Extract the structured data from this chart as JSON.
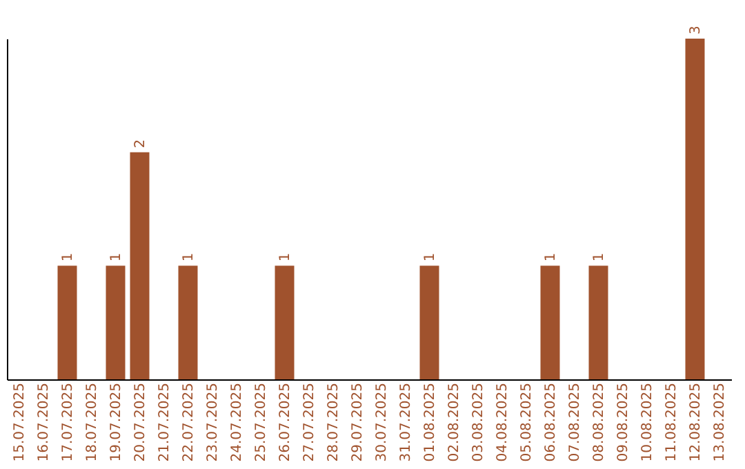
{
  "chart_data": {
    "type": "bar",
    "categories": [
      "15.07.2025",
      "16.07.2025",
      "17.07.2025",
      "18.07.2025",
      "19.07.2025",
      "20.07.2025",
      "21.07.2025",
      "22.07.2025",
      "23.07.2025",
      "24.07.2025",
      "25.07.2025",
      "26.07.2025",
      "27.07.2025",
      "28.07.2025",
      "29.07.2025",
      "30.07.2025",
      "31.07.2025",
      "01.08.2025",
      "02.08.2025",
      "03.08.2025",
      "04.08.2025",
      "05.08.2025",
      "06.08.2025",
      "07.08.2025",
      "08.08.2025",
      "09.08.2025",
      "10.08.2025",
      "11.08.2025",
      "12.08.2025",
      "13.08.2025"
    ],
    "values": [
      null,
      null,
      1,
      null,
      1,
      2,
      null,
      1,
      null,
      null,
      null,
      1,
      null,
      null,
      null,
      null,
      null,
      1,
      null,
      null,
      null,
      null,
      1,
      null,
      1,
      null,
      null,
      null,
      3,
      null
    ],
    "color": "#a0522d",
    "data_labels": true
  }
}
